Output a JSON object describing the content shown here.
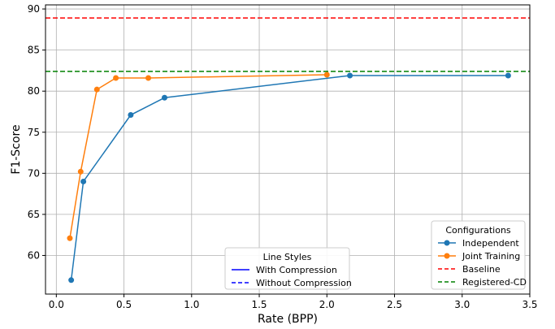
{
  "chart_data": {
    "type": "line",
    "xlabel": "Rate (BPP)",
    "ylabel": "F1-Score",
    "xlim": [
      -0.08,
      3.5
    ],
    "ylim": [
      55.3,
      90.5
    ],
    "xticks": [
      0.0,
      0.5,
      1.0,
      1.5,
      2.0,
      2.5,
      3.0,
      3.5
    ],
    "yticks": [
      60,
      65,
      70,
      75,
      80,
      85,
      90
    ],
    "xtick_labels": [
      "0.0",
      "0.5",
      "1.0",
      "1.5",
      "2.0",
      "2.5",
      "3.0",
      "3.5"
    ],
    "ytick_labels": [
      "60",
      "65",
      "70",
      "75",
      "80",
      "85",
      "90"
    ],
    "grid": true,
    "series": [
      {
        "name": "Independent",
        "color": "#1f77b4",
        "style": "solid",
        "marker": "circle",
        "x": [
          0.11,
          0.2,
          0.55,
          0.8,
          2.17,
          3.34
        ],
        "y": [
          57.0,
          69.0,
          77.1,
          79.2,
          81.9,
          81.9
        ]
      },
      {
        "name": "Joint Training",
        "color": "#ff7f0e",
        "style": "solid",
        "marker": "circle",
        "x": [
          0.1,
          0.18,
          0.3,
          0.44,
          0.68,
          2.0
        ],
        "y": [
          62.1,
          70.2,
          80.2,
          81.6,
          81.6,
          82.0
        ]
      }
    ],
    "hlines": [
      {
        "name": "Baseline",
        "color": "#ff0000",
        "style": "dashed",
        "y": 88.9
      },
      {
        "name": "Registered-CD",
        "color": "#008000",
        "style": "dashed",
        "y": 82.4
      }
    ],
    "legends": [
      {
        "title": "Configurations",
        "placement": "bottom-right",
        "entries": [
          {
            "label": "Independent",
            "color": "#1f77b4",
            "style": "solid",
            "marker": "circle"
          },
          {
            "label": "Joint Training",
            "color": "#ff7f0e",
            "style": "solid",
            "marker": "circle"
          },
          {
            "label": "Baseline",
            "color": "#ff0000",
            "style": "dashed",
            "marker": "none"
          },
          {
            "label": "Registered-CD",
            "color": "#008000",
            "style": "dashed",
            "marker": "none"
          }
        ]
      },
      {
        "title": "Line Styles",
        "placement": "bottom-center",
        "entries": [
          {
            "label": "With Compression",
            "color": "#0000ff",
            "style": "solid",
            "marker": "none"
          },
          {
            "label": "Without Compression",
            "color": "#0000ff",
            "style": "dashed",
            "marker": "none"
          }
        ]
      }
    ]
  }
}
